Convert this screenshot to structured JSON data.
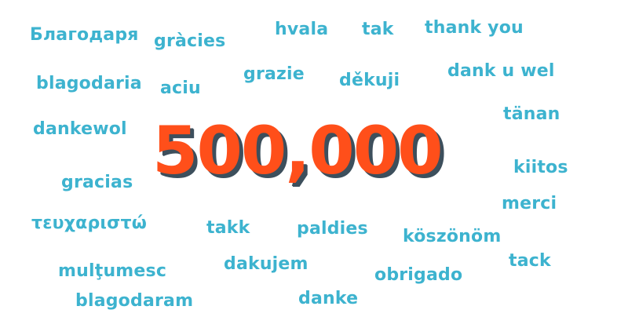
{
  "colors": {
    "word": "#3db3cf",
    "number": "#ff4f1a",
    "number_shadow": "#3d4f5c",
    "background": "#ffffff"
  },
  "headline": {
    "number": "500,000"
  },
  "words": [
    "Благодаря",
    "gràcies",
    "hvala",
    "tak",
    "thank you",
    "grazie",
    "děkuji",
    "dank u wel",
    "blagodaria",
    "aciu",
    "tänan",
    "dankewol",
    "kiitos",
    "gracias",
    "merci",
    "τευχαριστώ",
    "takk",
    "paldies",
    "köszönöm",
    "tack",
    "dakujem",
    "mulţumesc",
    "obrigado",
    "blagodaram",
    "danke"
  ]
}
